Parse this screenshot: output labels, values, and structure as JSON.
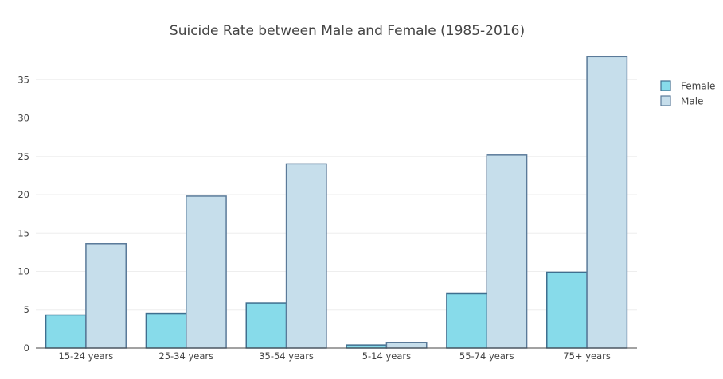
{
  "chart_data": {
    "type": "bar",
    "title": "Suicide Rate between Male and Female (1985-2016)",
    "xlabel": "",
    "ylabel": "",
    "categories": [
      "15-24 years",
      "25-34 years",
      "35-54 years",
      "5-14 years",
      "55-74 years",
      "75+ years"
    ],
    "series": [
      {
        "name": "Female",
        "values": [
          4.3,
          4.5,
          5.9,
          0.4,
          7.1,
          9.9
        ],
        "color": "#87dbea",
        "line_color": "#3f6f8f"
      },
      {
        "name": "Male",
        "values": [
          13.6,
          19.8,
          24.0,
          0.7,
          25.2,
          38.0
        ],
        "color": "#c6deeb",
        "line_color": "#5a7a99"
      }
    ],
    "ylim": [
      0,
      40
    ],
    "yticks": [
      0,
      5,
      10,
      15,
      20,
      25,
      30,
      35
    ],
    "grid": true,
    "legend_position": "top-right"
  }
}
